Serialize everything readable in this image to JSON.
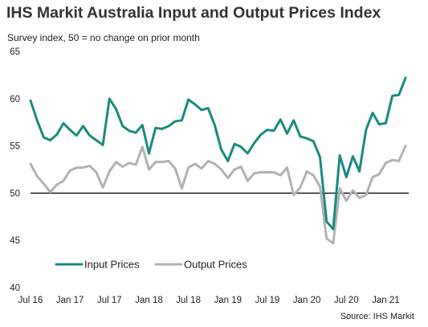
{
  "header": {
    "title": "IHS Markit Australia Input and Output Prices Index",
    "subtitle": "Survey index, 50 = no change on prior month",
    "source": "Source: IHS Markit"
  },
  "chart_data": {
    "type": "line",
    "title": "IHS Markit Australia Input and Output Prices Index",
    "subtitle": "Survey index, 50 = no change on prior month",
    "ylim": [
      40,
      65
    ],
    "yticks": [
      40,
      45,
      50,
      55,
      60,
      65
    ],
    "reference_line": 50,
    "x": [
      "Jul 16",
      "Aug 16",
      "Sep 16",
      "Oct 16",
      "Nov 16",
      "Dec 16",
      "Jan 17",
      "Feb 17",
      "Mar 17",
      "Apr 17",
      "May 17",
      "Jun 17",
      "Jul 17",
      "Aug 17",
      "Sep 17",
      "Oct 17",
      "Nov 17",
      "Dec 17",
      "Jan 18",
      "Feb 18",
      "Mar 18",
      "Apr 18",
      "May 18",
      "Jun 18",
      "Jul 18",
      "Aug 18",
      "Sep 18",
      "Oct 18",
      "Nov 18",
      "Dec 18",
      "Jan 19",
      "Feb 19",
      "Mar 19",
      "Apr 19",
      "May 19",
      "Jun 19",
      "Jul 19",
      "Aug 19",
      "Sep 19",
      "Oct 19",
      "Nov 19",
      "Dec 19",
      "Jan 20",
      "Feb 20",
      "Mar 20",
      "Apr 20",
      "May 20",
      "Jun 20",
      "Jul 20",
      "Aug 20",
      "Sep 20",
      "Oct 20",
      "Nov 20",
      "Dec 20",
      "Jan 21",
      "Feb 21",
      "Mar 21",
      "Apr 21"
    ],
    "x_tick_labels": [
      "Jul 16",
      "Jan 17",
      "Jul 17",
      "Jan 18",
      "Jul 18",
      "Jan 19",
      "Jul 19",
      "Jan 20",
      "Jul 20",
      "Jan 21"
    ],
    "series": [
      {
        "name": "Input Prices",
        "color": "#1a8a7e",
        "values": [
          59.8,
          57.7,
          55.9,
          55.6,
          56.2,
          57.4,
          56.7,
          56.1,
          57.1,
          56.1,
          55.6,
          55.1,
          60.0,
          58.9,
          57.1,
          56.6,
          56.4,
          57.2,
          54.2,
          56.9,
          56.8,
          57.1,
          57.6,
          57.7,
          59.9,
          59.4,
          58.8,
          59.0,
          57.2,
          54.6,
          53.4,
          55.2,
          54.9,
          54.2,
          55.3,
          56.2,
          56.7,
          56.6,
          57.8,
          56.3,
          57.7,
          56.0,
          55.8,
          55.5,
          53.8,
          47.0,
          46.2,
          54.0,
          51.7,
          53.9,
          52.3,
          56.7,
          58.5,
          57.3,
          57.4,
          60.3,
          60.4,
          62.2
        ]
      },
      {
        "name": "Output Prices",
        "color": "#b2b2b2",
        "values": [
          53.1,
          51.8,
          51.0,
          50.1,
          50.9,
          51.3,
          52.4,
          52.7,
          52.7,
          52.9,
          52.2,
          50.6,
          52.3,
          53.3,
          52.8,
          53.2,
          53.0,
          54.9,
          52.5,
          53.3,
          53.3,
          53.4,
          52.6,
          50.5,
          52.7,
          53.1,
          52.6,
          53.4,
          53.1,
          52.5,
          51.6,
          52.5,
          52.8,
          51.3,
          52.1,
          52.2,
          52.2,
          52.2,
          51.9,
          52.7,
          49.8,
          50.6,
          52.3,
          51.9,
          50.7,
          45.2,
          44.7,
          50.5,
          49.2,
          50.3,
          49.5,
          49.8,
          51.7,
          52.0,
          53.2,
          53.5,
          53.4,
          55.0
        ]
      }
    ],
    "legend": {
      "placement": "bottom-left",
      "entries": [
        "Input Prices",
        "Output Prices"
      ]
    },
    "grid": false
  }
}
